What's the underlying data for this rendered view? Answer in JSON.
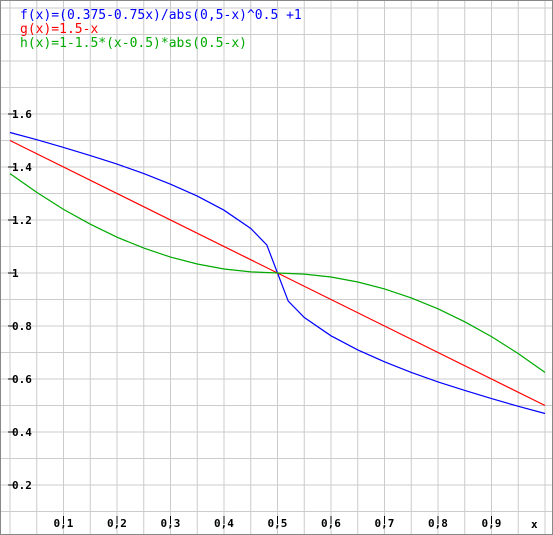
{
  "chart_data": {
    "type": "line",
    "xlabel": "x",
    "ylabel": "",
    "xlim": [
      0,
      1
    ],
    "ylim": [
      0,
      1.8
    ],
    "grid": true,
    "x_ticks": [
      0.1,
      0.2,
      0.3,
      0.4,
      0.5,
      0.6,
      0.7,
      0.8,
      0.9
    ],
    "y_ticks": [
      0.2,
      0.4,
      0.6,
      0.8,
      1,
      1.2,
      1.4,
      1.6
    ],
    "x_tick_labels": [
      "0,1",
      "0,2",
      "0,3",
      "0,4",
      "0,5",
      "0,6",
      "0,7",
      "0,8",
      "0,9"
    ],
    "y_tick_labels": [
      "0.2",
      "0.4",
      "0.6",
      "0.8",
      "1",
      "1.2",
      "1.4",
      "1.6"
    ],
    "legend_position": "top-left",
    "series": [
      {
        "name": "f(x)=(0.375-0.75x)/abs(0,5-x)^0.5 +1",
        "color": "#0000ff",
        "x": [
          0,
          0.05,
          0.1,
          0.15,
          0.2,
          0.25,
          0.3,
          0.35,
          0.4,
          0.45,
          0.48,
          0.5,
          0.52,
          0.55,
          0.6,
          0.65,
          0.7,
          0.75,
          0.8,
          0.85,
          0.9,
          0.95,
          1
        ],
        "y": [
          1.53,
          1.503,
          1.474,
          1.443,
          1.411,
          1.375,
          1.335,
          1.29,
          1.237,
          1.168,
          1.106,
          1.0,
          0.894,
          0.832,
          0.763,
          0.71,
          0.665,
          0.625,
          0.589,
          0.557,
          0.526,
          0.497,
          0.47
        ]
      },
      {
        "name": "g(x)=1.5-x",
        "color": "#ff0000",
        "x": [
          0,
          1
        ],
        "y": [
          1.5,
          0.5
        ]
      },
      {
        "name": "h(x)=1-1.5*(x-0.5)*abs(0.5-x)",
        "color": "#00aa00",
        "x": [
          0,
          0.05,
          0.1,
          0.15,
          0.2,
          0.25,
          0.3,
          0.35,
          0.4,
          0.45,
          0.5,
          0.55,
          0.6,
          0.65,
          0.7,
          0.75,
          0.8,
          0.85,
          0.9,
          0.95,
          1
        ],
        "y": [
          1.375,
          1.304,
          1.24,
          1.184,
          1.135,
          1.094,
          1.06,
          1.034,
          1.015,
          1.004,
          1.0,
          0.996,
          0.985,
          0.966,
          0.94,
          0.906,
          0.865,
          0.816,
          0.76,
          0.696,
          0.625
        ]
      }
    ]
  }
}
